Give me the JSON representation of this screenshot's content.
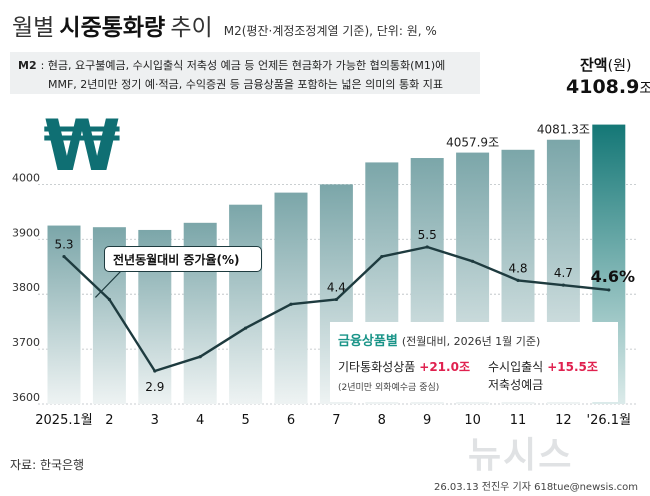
{
  "header": {
    "title_light1": "월별",
    "title_bold": "시중통화량",
    "title_light2": "추이",
    "subtitle": "M2(평잔·계정조정계열 기준), 단위: 원, %"
  },
  "definition": {
    "tag": "M2",
    "line1": ": 현금, 요구불예금, 수시입출식 저축성 예금 등 언제든 현금화가 가능한 협의통화(M1)에",
    "line2": "MMF, 2년미만 정기 예·적금, 수익증권 등 금융상품을 포함하는 넓은 의미의 통화 지표"
  },
  "balance": {
    "label": "잔액",
    "label_unit": "(원)",
    "value": "4108.9",
    "unit": "조"
  },
  "chart_data": {
    "type": "bar+line",
    "categories": [
      "2025.1월",
      "2",
      "3",
      "4",
      "5",
      "6",
      "7",
      "8",
      "9",
      "10",
      "11",
      "12",
      "'26.1월"
    ],
    "y_axis": {
      "ticks": [
        "3600",
        "3700",
        "3800",
        "3900",
        "4000"
      ],
      "ylim": [
        3600,
        4130
      ]
    },
    "bar_series": {
      "name": "잔액",
      "values": [
        3925,
        3922,
        3917,
        3930,
        3963,
        3985,
        4000,
        4040,
        4048,
        4057.9,
        4063,
        4081.3,
        4108.9
      ],
      "labels": [
        "",
        "",
        "",
        "",
        "",
        "",
        "",
        "",
        "",
        "4057.9조",
        "",
        "4081.3조",
        ""
      ]
    },
    "line_series": {
      "name": "전년동월대비 증가율(%)",
      "values": [
        5.3,
        4.4,
        2.9,
        3.2,
        3.8,
        4.3,
        4.4,
        5.3,
        5.5,
        5.2,
        4.8,
        4.7,
        4.6
      ],
      "labels": [
        "5.3",
        "",
        "2.9",
        "",
        "",
        "",
        "4.4",
        "",
        "5.5",
        "",
        "4.8",
        "4.7",
        "4.6%"
      ]
    }
  },
  "line_label": "전년동월대비 증가율(%)",
  "financial_box": {
    "title": "금융상품별",
    "subtitle": "(전월대비, 2026년 1월 기준)",
    "item1_label": "기타통화성상품",
    "item1_value": "+21.0조",
    "item1_note": "(2년미만 외화예수금 중심)",
    "item2_label_a": "수시입출식",
    "item2_label_b": "저축성예금",
    "item2_value": "+15.5조"
  },
  "colors": {
    "bar": "#6f9ea1",
    "bar_last": "#1a7b7a",
    "line": "#1e3b3f",
    "accent": "#1a9488",
    "highlight": "#e0214f",
    "won": "#0f6f73"
  },
  "icons": {
    "won_sign": "won-sign-icon"
  },
  "won_symbol": "₩",
  "source": "자료: 한국은행",
  "credit": "26.03.13 전진우 기자 618tue@newsis.com",
  "watermark": "뉴시스"
}
